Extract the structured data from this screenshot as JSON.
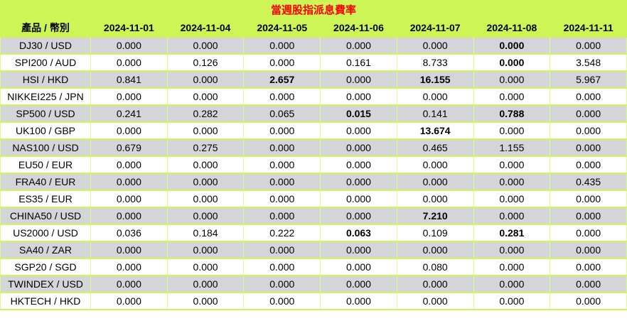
{
  "title": "當週股指派息費率",
  "columns": {
    "product": "產品 / 幣別",
    "dates": [
      "2024-11-01",
      "2024-11-04",
      "2024-11-05",
      "2024-11-06",
      "2024-11-07",
      "2024-11-08",
      "2024-11-11"
    ]
  },
  "rows": [
    {
      "product": "DJ30 / USD",
      "values": [
        "0.000",
        "0.000",
        "0.000",
        "0.000",
        "0.000",
        "0.000",
        "0.000"
      ],
      "bold_value_indices": [
        5
      ]
    },
    {
      "product": "SPI200 / AUD",
      "values": [
        "0.000",
        "0.126",
        "0.000",
        "0.161",
        "8.733",
        "0.000",
        "3.548"
      ],
      "bold_value_indices": [
        5
      ]
    },
    {
      "product": "HSI / HKD",
      "values": [
        "0.841",
        "0.000",
        "2.657",
        "0.000",
        "16.155",
        "0.000",
        "5.967"
      ],
      "bold_value_indices": [
        2,
        4
      ]
    },
    {
      "product": "NIKKEI225 / JPN",
      "values": [
        "0.000",
        "0.000",
        "0.000",
        "0.000",
        "0.000",
        "0.000",
        "0.000"
      ],
      "bold_value_indices": []
    },
    {
      "product": "SP500 / USD",
      "values": [
        "0.241",
        "0.282",
        "0.065",
        "0.015",
        "0.141",
        "0.788",
        "0.000"
      ],
      "bold_value_indices": [
        3,
        5
      ]
    },
    {
      "product": "UK100 / GBP",
      "values": [
        "0.000",
        "0.000",
        "0.000",
        "0.000",
        "13.674",
        "0.000",
        "0.000"
      ],
      "bold_value_indices": [
        4
      ]
    },
    {
      "product": "NAS100 / USD",
      "values": [
        "0.679",
        "0.275",
        "0.000",
        "0.000",
        "0.465",
        "1.155",
        "0.000"
      ],
      "bold_value_indices": []
    },
    {
      "product": "EU50 / EUR",
      "values": [
        "0.000",
        "0.000",
        "0.000",
        "0.000",
        "0.000",
        "0.000",
        "0.000"
      ],
      "bold_value_indices": []
    },
    {
      "product": "FRA40 / EUR",
      "values": [
        "0.000",
        "0.000",
        "0.000",
        "0.000",
        "0.000",
        "0.000",
        "0.435"
      ],
      "bold_value_indices": []
    },
    {
      "product": "ES35 / EUR",
      "values": [
        "0.000",
        "0.000",
        "0.000",
        "0.000",
        "0.000",
        "0.000",
        "0.000"
      ],
      "bold_value_indices": []
    },
    {
      "product": "CHINA50 / USD",
      "values": [
        "0.000",
        "0.000",
        "0.000",
        "0.000",
        "7.210",
        "0.000",
        "0.000"
      ],
      "bold_value_indices": [
        4
      ]
    },
    {
      "product": "US2000 / USD",
      "values": [
        "0.036",
        "0.184",
        "0.222",
        "0.063",
        "0.109",
        "0.281",
        "0.000"
      ],
      "bold_value_indices": [
        3,
        5
      ]
    },
    {
      "product": "SA40 / ZAR",
      "values": [
        "0.000",
        "0.000",
        "0.000",
        "0.000",
        "0.000",
        "0.000",
        "0.000"
      ],
      "bold_value_indices": []
    },
    {
      "product": "SGP20 / SGD",
      "values": [
        "0.000",
        "0.000",
        "0.000",
        "0.000",
        "0.080",
        "0.000",
        "0.000"
      ],
      "bold_value_indices": []
    },
    {
      "product": "TWINDEX / USD",
      "values": [
        "0.000",
        "0.000",
        "0.000",
        "0.000",
        "0.000",
        "0.000",
        "0.000"
      ],
      "bold_value_indices": []
    },
    {
      "product": "HKTECH / HKD",
      "values": [
        "0.000",
        "0.000",
        "0.000",
        "0.000",
        "0.000",
        "0.000",
        "0.000"
      ],
      "bold_value_indices": []
    }
  ],
  "colors": {
    "header_bg": "#cdf556",
    "title_text": "#ff0000",
    "row_alt_bg": "#d4d4d9",
    "row_bg": "#ffffff",
    "grid": "#cdf556",
    "body_text": "#000000"
  },
  "chart_data": {
    "type": "table",
    "title": "當週股指派息費率",
    "columns": [
      "產品 / 幣別",
      "2024-11-01",
      "2024-11-04",
      "2024-11-05",
      "2024-11-06",
      "2024-11-07",
      "2024-11-08",
      "2024-11-11"
    ],
    "rows": [
      [
        "DJ30 / USD",
        0.0,
        0.0,
        0.0,
        0.0,
        0.0,
        0.0,
        0.0
      ],
      [
        "SPI200 / AUD",
        0.0,
        0.126,
        0.0,
        0.161,
        8.733,
        0.0,
        3.548
      ],
      [
        "HSI / HKD",
        0.841,
        0.0,
        2.657,
        0.0,
        16.155,
        0.0,
        5.967
      ],
      [
        "NIKKEI225 / JPN",
        0.0,
        0.0,
        0.0,
        0.0,
        0.0,
        0.0,
        0.0
      ],
      [
        "SP500 / USD",
        0.241,
        0.282,
        0.065,
        0.015,
        0.141,
        0.788,
        0.0
      ],
      [
        "UK100 / GBP",
        0.0,
        0.0,
        0.0,
        0.0,
        13.674,
        0.0,
        0.0
      ],
      [
        "NAS100 / USD",
        0.679,
        0.275,
        0.0,
        0.0,
        0.465,
        1.155,
        0.0
      ],
      [
        "EU50 / EUR",
        0.0,
        0.0,
        0.0,
        0.0,
        0.0,
        0.0,
        0.0
      ],
      [
        "FRA40 / EUR",
        0.0,
        0.0,
        0.0,
        0.0,
        0.0,
        0.0,
        0.435
      ],
      [
        "ES35 / EUR",
        0.0,
        0.0,
        0.0,
        0.0,
        0.0,
        0.0,
        0.0
      ],
      [
        "CHINA50 / USD",
        0.0,
        0.0,
        0.0,
        0.0,
        7.21,
        0.0,
        0.0
      ],
      [
        "US2000 / USD",
        0.036,
        0.184,
        0.222,
        0.063,
        0.109,
        0.281,
        0.0
      ],
      [
        "SA40 / ZAR",
        0.0,
        0.0,
        0.0,
        0.0,
        0.0,
        0.0,
        0.0
      ],
      [
        "SGP20 / SGD",
        0.0,
        0.0,
        0.0,
        0.0,
        0.08,
        0.0,
        0.0
      ],
      [
        "TWINDEX / USD",
        0.0,
        0.0,
        0.0,
        0.0,
        0.0,
        0.0,
        0.0
      ],
      [
        "HKTECH / HKD",
        0.0,
        0.0,
        0.0,
        0.0,
        0.0,
        0.0,
        0.0
      ]
    ]
  }
}
